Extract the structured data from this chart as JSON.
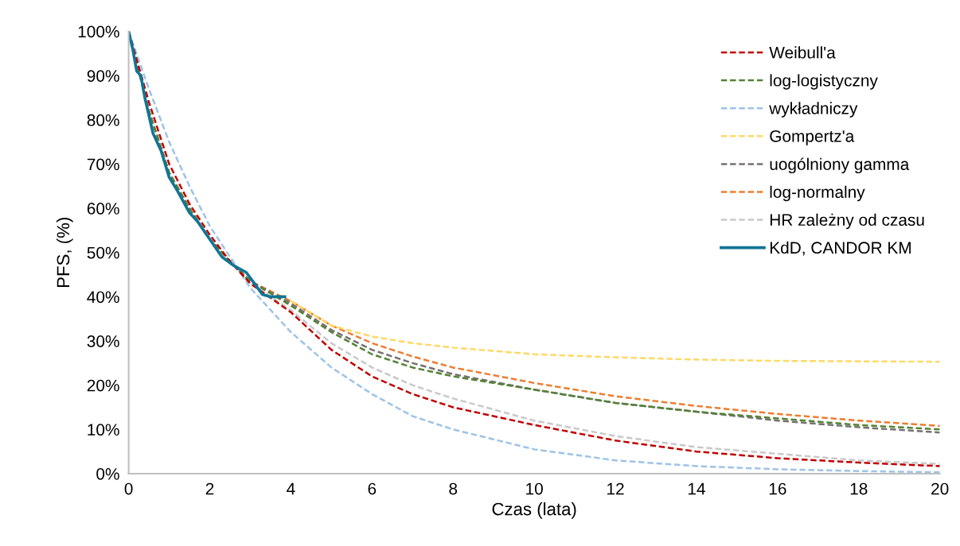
{
  "chart_data": {
    "type": "line",
    "xlabel": "Czas (lata)",
    "ylabel": "PFS, (%)",
    "xlim": [
      0,
      20
    ],
    "xticks": [
      0,
      2,
      4,
      6,
      8,
      10,
      12,
      14,
      16,
      18,
      20
    ],
    "ylim": [
      0,
      100
    ],
    "yticks": [
      {
        "value": 0,
        "label": "0%"
      },
      {
        "value": 10,
        "label": "10%"
      },
      {
        "value": 20,
        "label": "20%"
      },
      {
        "value": 30,
        "label": "30%"
      },
      {
        "value": 40,
        "label": "40%"
      },
      {
        "value": 50,
        "label": "50%"
      },
      {
        "value": 60,
        "label": "60%"
      },
      {
        "value": 70,
        "label": "70%"
      },
      {
        "value": 80,
        "label": "80%"
      },
      {
        "value": 90,
        "label": "90%"
      },
      {
        "value": 100,
        "label": "100%"
      }
    ],
    "grid": false,
    "legend": "top right",
    "marker": "none",
    "x": [
      0,
      0.5,
      1,
      1.5,
      2,
      2.5,
      3,
      4,
      5,
      6,
      7,
      8,
      10,
      12,
      14,
      16,
      18,
      20
    ],
    "series": [
      {
        "name": "Weibull'a",
        "color": "#c00000",
        "line_style": "dashed",
        "values": [
          100,
          84,
          70,
          61,
          54,
          48,
          43,
          36.5,
          28,
          22,
          18,
          15,
          11,
          7.5,
          5,
          3.5,
          2.5,
          1.7
        ]
      },
      {
        "name": "log-logistyczny",
        "color": "#548235",
        "line_style": "dashed",
        "values": [
          100,
          82,
          68,
          60,
          53,
          48,
          43.5,
          38,
          32,
          27,
          24,
          22,
          19,
          16,
          14,
          12.5,
          11,
          10
        ]
      },
      {
        "name": "wykładniczy",
        "color": "#9dc3e6",
        "line_style": "dashed",
        "values": [
          100,
          87,
          75,
          65,
          56,
          49,
          42,
          32,
          24,
          18,
          13,
          10,
          5.5,
          3,
          1.7,
          1,
          0.6,
          0.3
        ]
      },
      {
        "name": "Gompertz'a",
        "color": "#ffd966",
        "line_style": "dashed",
        "values": [
          null,
          null,
          null,
          null,
          null,
          null,
          null,
          39,
          33.5,
          31,
          29.5,
          28.5,
          27,
          26.3,
          25.8,
          25.5,
          25.4,
          25.3
        ]
      },
      {
        "name": "uogólniony gamma",
        "color": "#767171",
        "line_style": "dashed",
        "values": [
          100,
          82,
          68,
          60,
          53,
          48,
          43.5,
          38.5,
          32.5,
          28,
          25,
          22.5,
          19,
          16,
          14,
          12,
          10.5,
          9.3
        ]
      },
      {
        "name": "log-normalny",
        "color": "#ed7d31",
        "line_style": "dashed",
        "values": [
          100,
          82,
          68,
          60,
          53,
          48,
          43.5,
          39,
          33.5,
          29.5,
          26.5,
          24,
          20.5,
          17.5,
          15.3,
          13.5,
          12,
          10.8
        ]
      },
      {
        "name": "HR zależny od czasu",
        "color": "#c9c9c9",
        "line_style": "dashed",
        "values": [
          100,
          82,
          68,
          60,
          53,
          48,
          43,
          37,
          29.5,
          24,
          20,
          17,
          12,
          8.5,
          6,
          4.5,
          3,
          2.2
        ]
      },
      {
        "name": "KdD, CANDOR KM",
        "color": "#107595",
        "line_style": "solid",
        "x": [
          0,
          0.1,
          0.2,
          0.3,
          0.4,
          0.6,
          0.8,
          1.0,
          1.2,
          1.5,
          1.7,
          2.0,
          2.3,
          2.6,
          2.9,
          3.1,
          3.3,
          3.5,
          3.85
        ],
        "values": [
          100,
          96,
          91,
          90,
          85,
          77,
          73,
          67,
          64,
          59,
          57,
          53,
          49,
          47,
          45.5,
          43,
          40.5,
          40,
          40
        ]
      }
    ]
  }
}
